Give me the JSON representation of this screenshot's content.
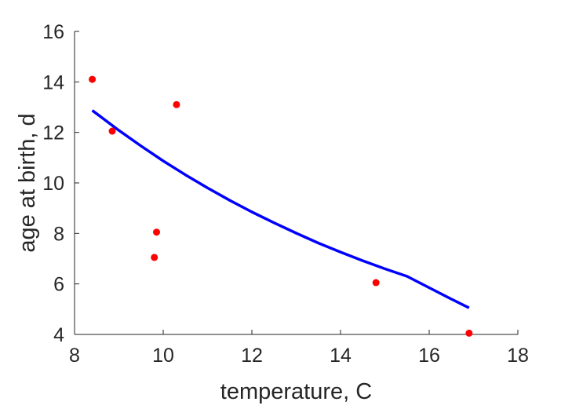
{
  "chart_data": {
    "type": "scatter",
    "title": "",
    "xlabel": "temperature, C",
    "ylabel": "age at birth, d",
    "xlim": [
      8,
      18
    ],
    "ylim": [
      4,
      16
    ],
    "xticks": [
      8,
      10,
      12,
      14,
      16,
      18
    ],
    "yticks": [
      4,
      6,
      8,
      10,
      12,
      14,
      16
    ],
    "grid": false,
    "series": [
      {
        "kind": "points",
        "color": "#ff0000",
        "x": [
          8.4,
          8.85,
          9.8,
          9.85,
          10.3,
          14.8,
          16.9
        ],
        "y": [
          14.1,
          12.05,
          7.05,
          8.05,
          13.1,
          6.05,
          4.05
        ]
      },
      {
        "kind": "line",
        "color": "#0000ff",
        "x": [
          8.4,
          9.0,
          9.5,
          10.0,
          10.5,
          11.0,
          11.5,
          12.0,
          12.5,
          13.0,
          13.5,
          14.0,
          14.5,
          15.0,
          15.5,
          16.0,
          16.5,
          16.9
        ],
        "y": [
          12.87,
          12.08,
          11.46,
          10.87,
          10.32,
          9.8,
          9.31,
          8.85,
          8.42,
          8.01,
          7.62,
          7.26,
          6.92,
          6.6,
          6.3,
          5.85,
          5.4,
          5.05
        ]
      }
    ]
  }
}
